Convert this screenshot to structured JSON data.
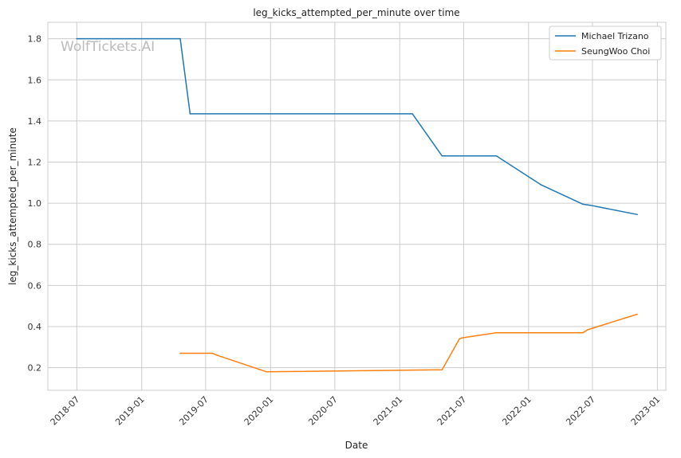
{
  "chart_data": {
    "type": "line",
    "title": "leg_kicks_attempted_per_minute over time",
    "xlabel": "Date",
    "ylabel": "leg_kicks_attempted_per_minute",
    "watermark": "WolfTickets.AI",
    "xlim": [
      "2018-04-10",
      "2023-01-25"
    ],
    "ylim": [
      0.09,
      1.88
    ],
    "x_ticks": [
      "2018-07-01",
      "2019-01-01",
      "2019-07-01",
      "2020-01-01",
      "2020-07-01",
      "2021-01-01",
      "2021-07-01",
      "2022-01-01",
      "2022-07-01",
      "2023-01-01"
    ],
    "x_tick_labels": [
      "2018-07",
      "2019-01",
      "2019-07",
      "2020-01",
      "2020-07",
      "2021-01",
      "2021-07",
      "2022-01",
      "2022-07",
      "2023-01"
    ],
    "y_ticks": [
      0.2,
      0.4,
      0.6,
      0.8,
      1.0,
      1.2,
      1.4,
      1.6,
      1.8
    ],
    "y_tick_labels": [
      "0.2",
      "0.4",
      "0.6",
      "0.8",
      "1.0",
      "1.2",
      "1.4",
      "1.6",
      "1.8"
    ],
    "grid": true,
    "legend_position": "top-right",
    "series": [
      {
        "name": "Michael Trizano",
        "color": "#1f77b4",
        "x": [
          "2018-07-01",
          "2019-04-20",
          "2019-05-18",
          "2021-02-06",
          "2021-05-01",
          "2021-10-02",
          "2022-02-05",
          "2022-06-04",
          "2022-06-25",
          "2022-11-05"
        ],
        "y": [
          1.8,
          1.8,
          1.435,
          1.435,
          1.23,
          1.23,
          1.09,
          0.995,
          0.99,
          0.945
        ]
      },
      {
        "name": "SeungWoo Choi",
        "color": "#ff7f0e",
        "x": [
          "2019-04-20",
          "2019-07-20",
          "2019-08-03",
          "2019-12-21",
          "2021-05-01",
          "2021-06-19",
          "2021-06-26",
          "2021-10-02",
          "2022-06-04",
          "2022-06-18",
          "2022-11-05"
        ],
        "y": [
          0.27,
          0.27,
          0.26,
          0.18,
          0.19,
          0.34,
          0.345,
          0.37,
          0.37,
          0.385,
          0.46
        ]
      }
    ]
  }
}
